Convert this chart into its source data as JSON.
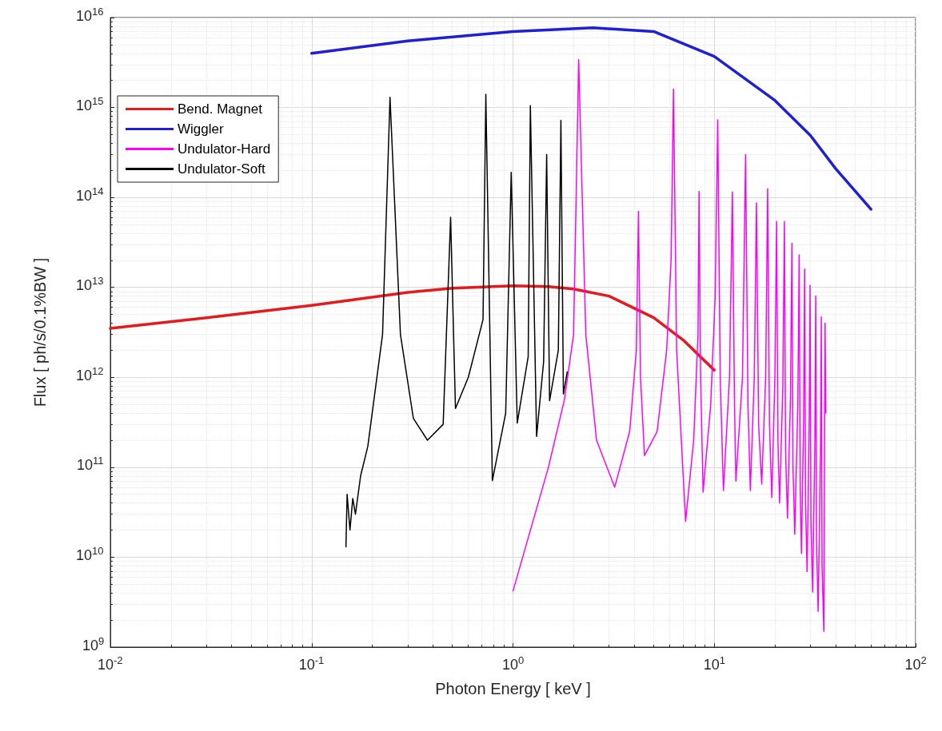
{
  "chart_data": {
    "type": "line",
    "xlabel": "Photon Energy [ keV ]",
    "ylabel": "Flux [ ph/s/0.1%BW ]",
    "log": "xy",
    "grid": true,
    "legend": "top left",
    "line_style": "solid",
    "marker": "none",
    "xlim": [
      0.01,
      100
    ],
    "ylim": [
      1000000000.0,
      1e+16
    ],
    "xticks": [
      {
        "value": 0.01,
        "label": "10$^{-2}$"
      },
      {
        "value": 0.1,
        "label": "10$^{-1}$"
      },
      {
        "value": 1,
        "label": "10$^{0}$"
      },
      {
        "value": 10,
        "label": "10$^{1}$"
      },
      {
        "value": 100,
        "label": "10$^{2}$"
      }
    ],
    "yticks": [
      {
        "value": 1000000000.0,
        "label": "10$^{9}$"
      },
      {
        "value": 10000000000.0,
        "label": "10$^{10}$"
      },
      {
        "value": 100000000000.0,
        "label": "10$^{11}$"
      },
      {
        "value": 1000000000000.0,
        "label": "10$^{12}$"
      },
      {
        "value": 10000000000000.0,
        "label": "10$^{13}$"
      },
      {
        "value": 100000000000000.0,
        "label": "10$^{14}$"
      },
      {
        "value": 1000000000000000.0,
        "label": "10$^{15}$"
      },
      {
        "value": 1e+16,
        "label": "10$^{16}$"
      }
    ],
    "series": [
      {
        "name": "Bend. Magnet",
        "color": "#e41a1c",
        "x": [
          0.01,
          0.03,
          0.1,
          0.3,
          0.5,
          1,
          1.5,
          2,
          3,
          5,
          7,
          10
        ],
        "values": [
          3500000000000.0,
          4600000000000.0,
          6300000000000.0,
          8800000000000.0,
          9800000000000.0,
          10400000000000.0,
          10200000000000.0,
          9600000000000.0,
          8000000000000.0,
          4600000000000.0,
          2600000000000.0,
          1200000000000.0
        ]
      },
      {
        "name": "Wiggler",
        "color": "#1f1fd6",
        "x": [
          0.1,
          0.3,
          1,
          2.5,
          5,
          10,
          20,
          30,
          40,
          60
        ],
        "values": [
          4000000000000000.0,
          5500000000000000.0,
          7000000000000000.0,
          7700000000000000.0,
          7000000000000000.0,
          3700000000000000.0,
          1200000000000000.0,
          490000000000000.0,
          210000000000000.0,
          74000000000000.0
        ]
      },
      {
        "name": "Undulator-Hard",
        "color": "#ff00ff",
        "x": [
          1,
          1.5,
          1.8,
          2,
          2.12,
          2.3,
          2.6,
          3.2,
          3.8,
          4.1,
          4.2,
          4.3,
          4.5,
          5.2,
          5.8,
          6.1,
          6.27,
          6.5,
          7.2,
          7.9,
          8.3,
          8.4,
          8.55,
          8.8,
          9.6,
          10.1,
          10.4,
          10.7,
          11.1,
          11.9,
          12.3,
          12.6,
          12.8,
          13.8,
          14.3,
          14.7,
          15.1,
          15.8,
          16.2,
          16.6,
          17.2,
          18.0,
          18.4,
          18.8,
          19.3,
          20.0,
          20.4,
          20.7,
          21.1,
          21.9,
          22.3,
          22.6,
          23.1,
          23.9,
          24.3,
          24.6,
          25.1,
          26.0,
          26.4,
          26.7,
          27.1,
          27.8,
          28.1,
          28.4,
          28.9,
          29.6,
          29.9,
          30.2,
          30.8,
          31.6,
          31.9,
          32.2,
          32.8,
          33.7,
          34.0,
          34.3,
          35.0,
          35.5,
          35.8
        ],
        "values": [
          4200000000.0,
          100000000000.0,
          560000000000.0,
          3000000000000.0,
          3400000000000000.0,
          3000000000000.0,
          200000000000.0,
          60000000000.0,
          250000000000.0,
          2000000000000.0,
          70000000000000.0,
          1000000000000.0,
          135000000000.0,
          250000000000.0,
          2000000000000.0,
          20000000000000.0,
          1600000000000000.0,
          2000000000000.0,
          25000000000.0,
          200000000000.0,
          3000000000000.0,
          117000000000000.0,
          1000000000000.0,
          53000000000.0,
          500000000000.0,
          8000000000000.0,
          730000000000000.0,
          1000000000000.0,
          55000000000.0,
          1000000000000.0,
          115000000000000.0,
          500000000000.0,
          70000000000.0,
          1000000000000.0,
          300000000000000.0,
          500000000000.0,
          55000000000.0,
          1000000000000.0,
          87000000000000.0,
          300000000000.0,
          65000000000.0,
          1000000000000.0,
          125000000000000.0,
          300000000000.0,
          46000000000.0,
          1000000000000.0,
          54000000000000.0,
          200000000000.0,
          40000000000.0,
          800000000000.0,
          54000000000000.0,
          150000000000.0,
          27000000000.0,
          600000000000.0,
          31000000000000.0,
          100000000000.0,
          18000000000.0,
          500000000000.0,
          23000000000000.0,
          60000000000.0,
          11000000000.0,
          400000000000.0,
          16000000000000.0,
          40000000000.0,
          6900000000.0,
          300000000000.0,
          10500000000000.0,
          25000000000.0,
          4100000000.0,
          200000000000.0,
          8000000000000.0,
          15000000000.0,
          2500000000.0,
          150000000000.0,
          4700000000000.0,
          8000000000.0,
          1500000000.0,
          4000000000000.0,
          400000000000.0
        ]
      },
      {
        "name": "Undulator-Soft",
        "color": "#000000",
        "x": [
          0.148,
          0.15,
          0.155,
          0.16,
          0.165,
          0.175,
          0.19,
          0.225,
          0.245,
          0.276,
          0.32,
          0.376,
          0.45,
          0.49,
          0.518,
          0.6,
          0.71,
          0.733,
          0.79,
          0.92,
          0.98,
          1.05,
          1.19,
          1.22,
          1.31,
          1.42,
          1.47,
          1.52,
          1.68,
          1.73,
          1.78,
          1.86
        ],
        "values": [
          13000000000.0,
          50000000000.0,
          20000000000.0,
          45000000000.0,
          30000000000.0,
          80000000000.0,
          170000000000.0,
          3000000000000.0,
          1300000000000000.0,
          3000000000000.0,
          350000000000.0,
          200000000000.0,
          300000000000.0,
          60000000000000.0,
          450000000000.0,
          1000000000000.0,
          4400000000000.0,
          1400000000000000.0,
          71000000000.0,
          400000000000.0,
          190000000000000.0,
          310000000000.0,
          1700000000000.0,
          1050000000000000.0,
          220000000000.0,
          1500000000000.0,
          300000000000000.0,
          550000000000.0,
          2000000000000.0,
          720000000000000.0,
          650000000000.0,
          1150000000000.0
        ]
      }
    ]
  }
}
